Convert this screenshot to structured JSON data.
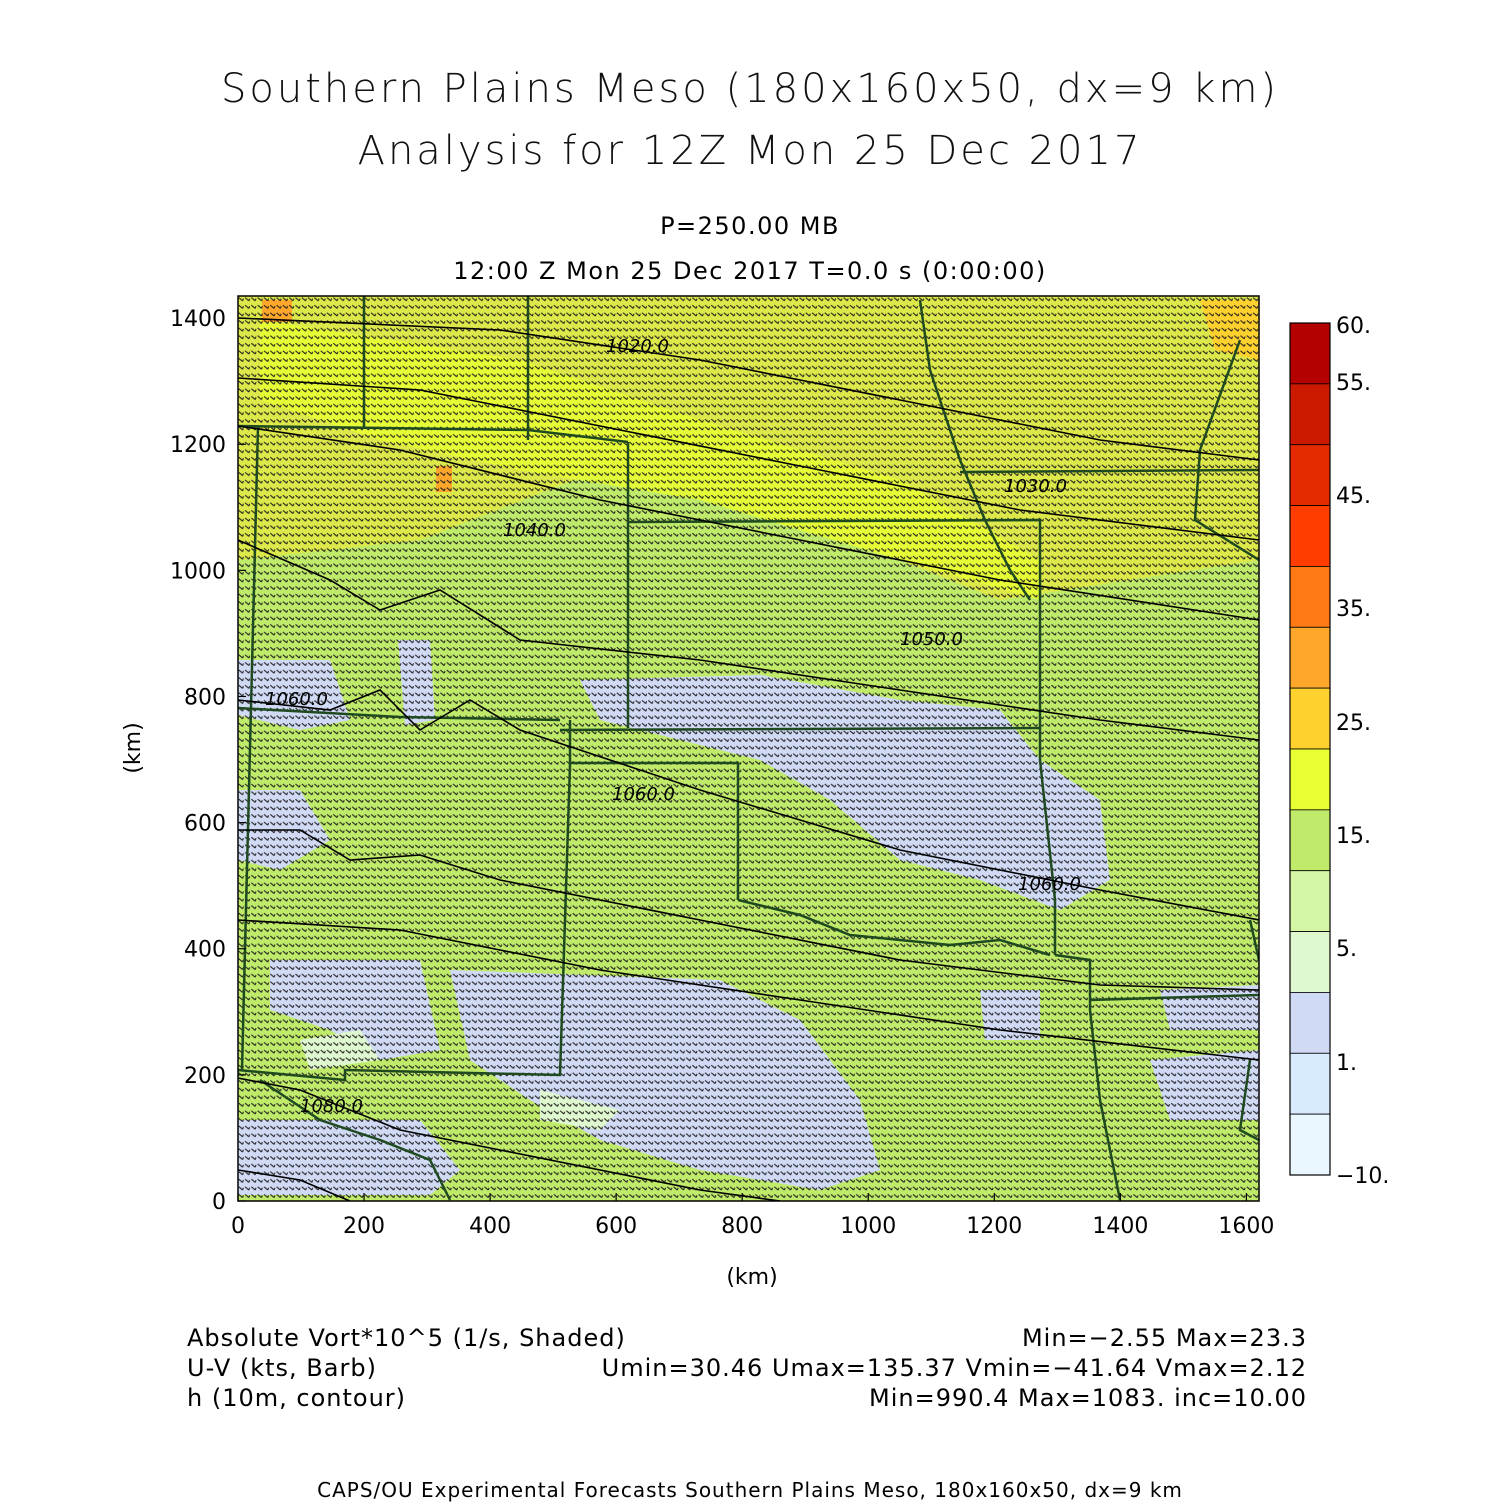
{
  "title": {
    "line1": "Southern Plains Meso (180x160x50, dx=9 km)",
    "line2": "Analysis for 12Z Mon 25 Dec 2017"
  },
  "level": "P=250.00 MB",
  "timeline": "12:00 Z Mon 25 Dec 2017    T=0.0 s (0:00:00)",
  "axes": {
    "xlabel": "(km)",
    "ylabel": "(km)",
    "xticks": [
      "0",
      "200",
      "400",
      "600",
      "800",
      "1000",
      "1200",
      "1400",
      "1600"
    ],
    "yticks": [
      "0",
      "200",
      "400",
      "600",
      "800",
      "1000",
      "1200",
      "1400"
    ]
  },
  "colorbar": {
    "labels": [
      "60.",
      "55.",
      "45.",
      "35.",
      "25.",
      "15.",
      "5.",
      "1.",
      "−10."
    ],
    "colors": [
      "#b30000",
      "#cc1a00",
      "#e62a00",
      "#ff3d00",
      "#ff7a14",
      "#ffa72b",
      "#ffd12e",
      "#e8ff33",
      "#bfea6a",
      "#d4f7a6",
      "#e0f8d0",
      "#d0daf5",
      "#d8eafd",
      "#eaf7ff"
    ]
  },
  "contours": [
    {
      "label": "1020.0"
    },
    {
      "label": "1030.0"
    },
    {
      "label": "1040.0"
    },
    {
      "label": "1050.0"
    },
    {
      "label": "1060.0"
    },
    {
      "label": "1060.0"
    },
    {
      "label": "1060.0"
    },
    {
      "label": "1080.0"
    }
  ],
  "footer": {
    "left": [
      "Absolute Vort*10^5 (1/s, Shaded)",
      "U-V (kts, Barb)",
      "h (10m, contour)"
    ],
    "right": [
      "Min=−2.55 Max=23.3",
      "Umin=30.46 Umax=135.37 Vmin=−41.64 Vmax=2.12",
      "Min=990.4 Max=1083. inc=10.00"
    ]
  },
  "credit": "CAPS/OU Experimental Forecasts  Southern Plains Meso, 180x160x50, dx=9 km"
}
